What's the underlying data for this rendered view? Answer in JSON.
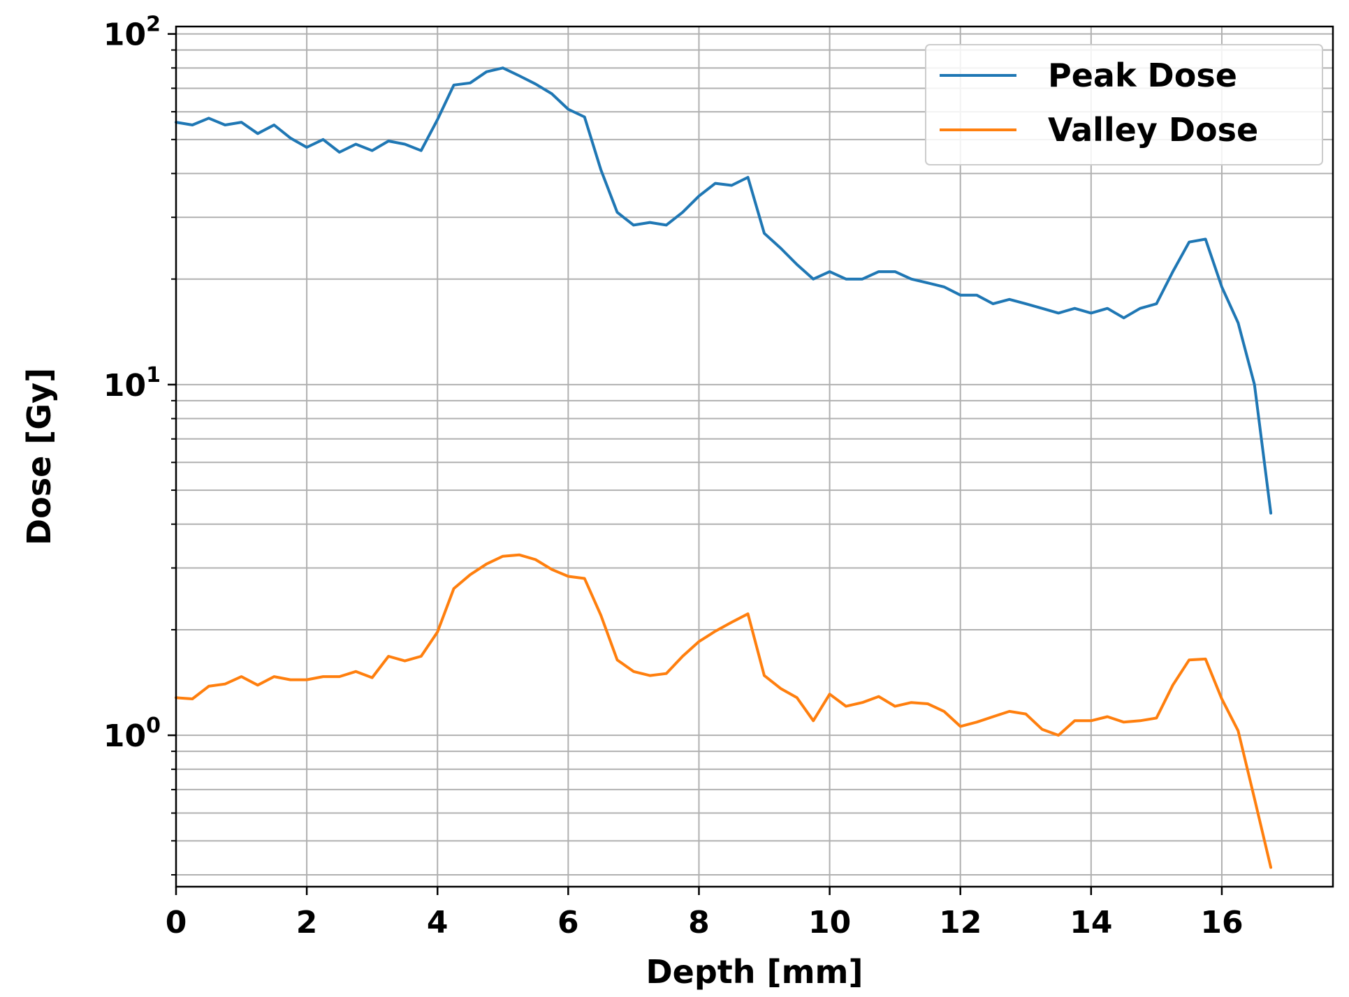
{
  "chart_data": {
    "type": "line",
    "xlabel": "Depth [mm]",
    "ylabel": "Dose [Gy]",
    "xlim": [
      0,
      17.7
    ],
    "ylim": [
      0.37,
      105
    ],
    "y_scale": "log",
    "grid": true,
    "legend_position": "top-right",
    "x_ticks": [
      0,
      2,
      4,
      6,
      8,
      10,
      12,
      14,
      16
    ],
    "y_major_ticks": [
      {
        "value": 1,
        "base": "10",
        "exp": "0"
      },
      {
        "value": 10,
        "base": "10",
        "exp": "1"
      },
      {
        "value": 100,
        "base": "10",
        "exp": "2"
      }
    ],
    "series": [
      {
        "name": "Peak Dose",
        "color": "#1f77b4",
        "x": [
          0,
          0.25,
          0.5,
          0.75,
          1.0,
          1.25,
          1.5,
          1.75,
          2.0,
          2.25,
          2.5,
          2.75,
          3.0,
          3.25,
          3.5,
          3.75,
          4.0,
          4.25,
          4.5,
          4.75,
          5.0,
          5.25,
          5.5,
          5.75,
          6.0,
          6.25,
          6.5,
          6.75,
          7.0,
          7.25,
          7.5,
          7.75,
          8.0,
          8.25,
          8.5,
          8.75,
          9.0,
          9.25,
          9.5,
          9.75,
          10.0,
          10.25,
          10.5,
          10.75,
          11.0,
          11.25,
          11.5,
          11.75,
          12.0,
          12.25,
          12.5,
          12.75,
          13.0,
          13.25,
          13.5,
          13.75,
          14.0,
          14.25,
          14.5,
          14.75,
          15.0,
          15.25,
          15.5,
          15.75,
          16.0,
          16.25,
          16.5,
          16.75
        ],
        "values": [
          56,
          55,
          57.5,
          55,
          56,
          52,
          55,
          50.5,
          47.5,
          50,
          46,
          48.5,
          46.5,
          49.5,
          48.5,
          46.5,
          57,
          71.5,
          72.5,
          78,
          80,
          76,
          72,
          67.5,
          61,
          58,
          41,
          31,
          28.5,
          29,
          28.5,
          31,
          34.5,
          37.5,
          37,
          39,
          27,
          24.5,
          22,
          20,
          21,
          20,
          20,
          21,
          21,
          20,
          19.5,
          19,
          18,
          18,
          17,
          17.5,
          17,
          16.5,
          16,
          16.5,
          16,
          16.5,
          15.5,
          16.5,
          17,
          21,
          25.5,
          26,
          19,
          15,
          10,
          4.3
        ]
      },
      {
        "name": "Valley Dose",
        "color": "#ff7f0e",
        "x": [
          0,
          0.25,
          0.5,
          0.75,
          1.0,
          1.25,
          1.5,
          1.75,
          2.0,
          2.25,
          2.5,
          2.75,
          3.0,
          3.25,
          3.5,
          3.75,
          4.0,
          4.25,
          4.5,
          4.75,
          5.0,
          5.25,
          5.5,
          5.75,
          6.0,
          6.25,
          6.5,
          6.75,
          7.0,
          7.25,
          7.5,
          7.75,
          8.0,
          8.25,
          8.5,
          8.75,
          9.0,
          9.25,
          9.5,
          9.75,
          10.0,
          10.25,
          10.5,
          10.75,
          11.0,
          11.25,
          11.5,
          11.75,
          12.0,
          12.25,
          12.5,
          12.75,
          13.0,
          13.25,
          13.5,
          13.75,
          14.0,
          14.25,
          14.5,
          14.75,
          15.0,
          15.25,
          15.5,
          15.75,
          16.0,
          16.25,
          16.5,
          16.75
        ],
        "values": [
          1.28,
          1.27,
          1.38,
          1.4,
          1.47,
          1.39,
          1.47,
          1.44,
          1.44,
          1.47,
          1.47,
          1.52,
          1.46,
          1.68,
          1.63,
          1.68,
          1.97,
          2.62,
          2.87,
          3.08,
          3.24,
          3.27,
          3.17,
          2.97,
          2.84,
          2.8,
          2.2,
          1.64,
          1.52,
          1.48,
          1.5,
          1.68,
          1.85,
          1.98,
          2.1,
          2.22,
          1.48,
          1.36,
          1.28,
          1.1,
          1.31,
          1.21,
          1.24,
          1.29,
          1.21,
          1.24,
          1.23,
          1.17,
          1.06,
          1.09,
          1.13,
          1.17,
          1.15,
          1.04,
          1.0,
          1.1,
          1.1,
          1.13,
          1.09,
          1.1,
          1.12,
          1.39,
          1.64,
          1.65,
          1.27,
          1.03,
          0.66,
          0.42
        ]
      }
    ]
  }
}
